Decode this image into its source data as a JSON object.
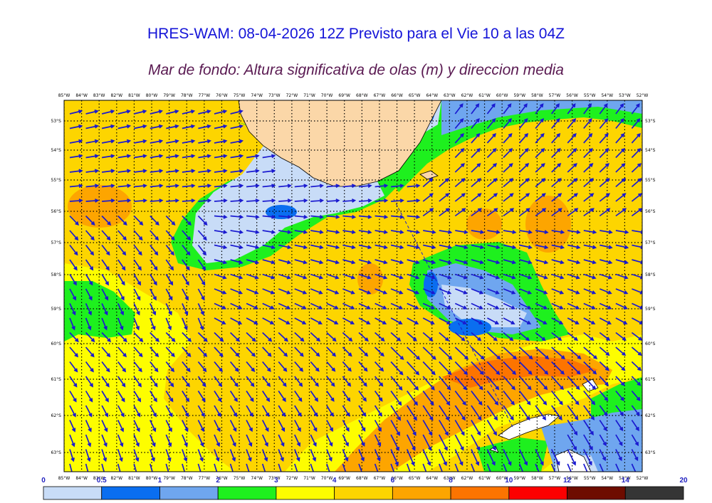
{
  "header": {
    "title": "HRES-WAM: 08-04-2026 12Z Previsto para el Vie 10 a las 04Z",
    "subtitle": "Mar de fondo: Altura significativa de olas (m) y direccion media"
  },
  "map": {
    "lon_labels": [
      "85°W",
      "84°W",
      "83°W",
      "82°W",
      "81°W",
      "80°W",
      "79°W",
      "78°W",
      "77°W",
      "76°W",
      "75°W",
      "74°W",
      "73°W",
      "72°W",
      "71°W",
      "70°W",
      "69°W",
      "68°W",
      "67°W",
      "66°W",
      "65°W",
      "64°W",
      "63°W",
      "62°W",
      "61°W",
      "60°W",
      "59°W",
      "58°W",
      "57°W",
      "56°W",
      "55°W",
      "54°W",
      "53°W",
      "52°W"
    ],
    "lat_labels": [
      "53°S",
      "54°S",
      "55°S",
      "56°S",
      "57°S",
      "58°S",
      "59°S",
      "60°S",
      "61°S",
      "62°S",
      "63°S"
    ],
    "colors": {
      "land": "#fbd7a8",
      "ice": "#ffffff",
      "arrow": "#1a1ad0",
      "background_band": "#fdd500"
    }
  },
  "colorbar": {
    "ticks": [
      "0",
      "0.5",
      "1",
      "2",
      "3",
      "4",
      "6",
      "8",
      "10",
      "12",
      "14",
      "20"
    ],
    "colors": [
      "#c8dcf7",
      "#0a6ef0",
      "#6fa6ef",
      "#1ef01e",
      "#fdfd00",
      "#fdd500",
      "#fda500",
      "#fd7400",
      "#fc0000",
      "#6e0c00",
      "#353535"
    ]
  }
}
